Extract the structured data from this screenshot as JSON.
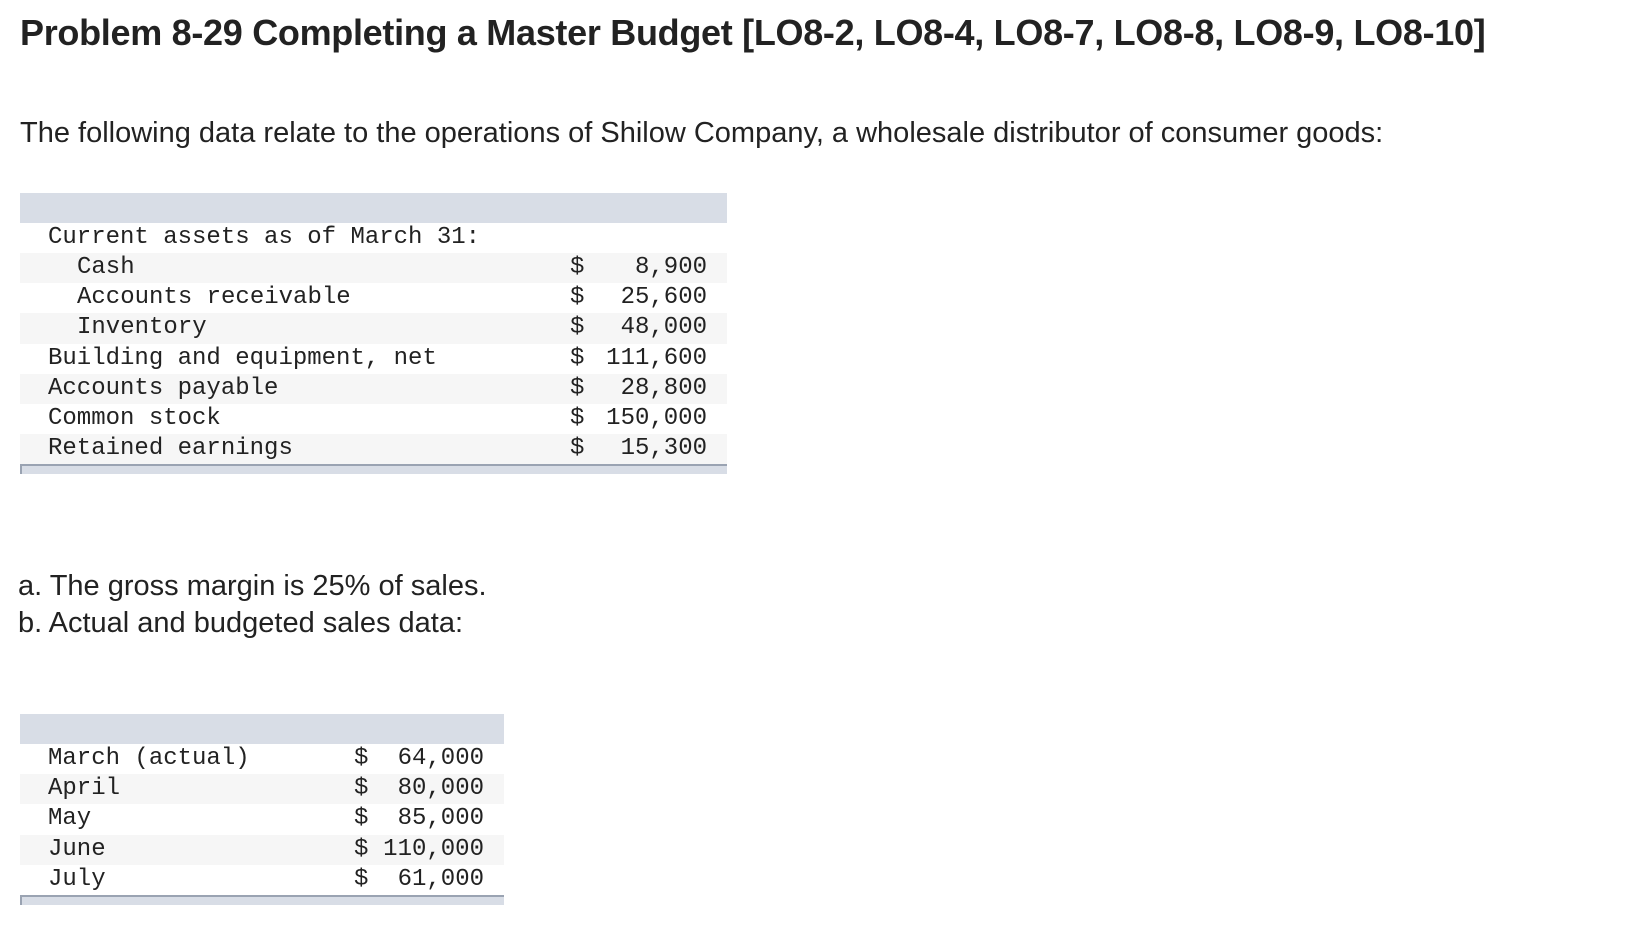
{
  "title": "Problem 8-29 Completing a Master Budget [LO8-2, LO8-4, LO8-7, LO8-8, LO8-9, LO8-10]",
  "intro": "The following data relate to the operations of Shilow Company, a wholesale distributor of consumer goods:",
  "balance_table": {
    "heading": "Current assets as of March 31:",
    "rows": [
      {
        "label": "Cash",
        "currency": "$",
        "amount": "8,900",
        "indent": true
      },
      {
        "label": "Accounts receivable",
        "currency": "$",
        "amount": "25,600",
        "indent": true
      },
      {
        "label": "Inventory",
        "currency": "$",
        "amount": "48,000",
        "indent": true
      },
      {
        "label": "Building and equipment, net",
        "currency": "$",
        "amount": "111,600",
        "indent": false
      },
      {
        "label": "Accounts payable",
        "currency": "$",
        "amount": "28,800",
        "indent": false
      },
      {
        "label": "Common stock",
        "currency": "$",
        "amount": "150,000",
        "indent": false
      },
      {
        "label": "Retained earnings",
        "currency": "$",
        "amount": "15,300",
        "indent": false
      }
    ]
  },
  "notes": [
    "a. The gross margin is 25% of sales.",
    "b. Actual and budgeted sales data:"
  ],
  "sales_table": {
    "rows": [
      {
        "label": "March (actual)",
        "currency": "$",
        "amount": "64,000"
      },
      {
        "label": "April",
        "currency": "$",
        "amount": "80,000"
      },
      {
        "label": "May",
        "currency": "$",
        "amount": "85,000"
      },
      {
        "label": "June",
        "currency": "$",
        "amount": "110,000"
      },
      {
        "label": "July",
        "currency": "$",
        "amount": "61,000"
      }
    ]
  }
}
